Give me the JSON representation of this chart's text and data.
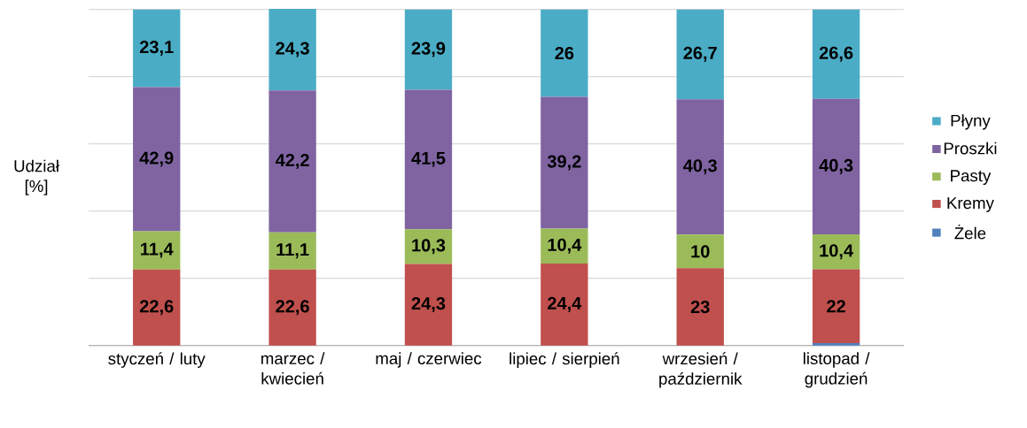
{
  "chart_data": {
    "type": "bar",
    "stacked": true,
    "ylabel": "Udział [%]",
    "categories": [
      "styczeń / luty",
      "marzec / kwiecień",
      "maj / czerwiec",
      "lipiec / sierpień",
      "wrzesień / październik",
      "listopad / grudzień"
    ],
    "series": [
      {
        "name": "Żele",
        "color": "#4f81bd",
        "values": [
          0,
          0,
          0,
          0,
          0,
          0.7
        ]
      },
      {
        "name": "Kremy",
        "color": "#c0504d",
        "values": [
          22.6,
          22.6,
          24.3,
          24.4,
          23,
          22
        ],
        "value_labels": [
          "22,6",
          "22,6",
          "24,3",
          "24,4",
          "23",
          "22"
        ]
      },
      {
        "name": "Pasty",
        "color": "#9bbb59",
        "values": [
          11.4,
          11.1,
          10.3,
          10.4,
          10,
          10.4
        ],
        "value_labels": [
          "11,4",
          "11,1",
          "10,3",
          "10,4",
          "10",
          "10,4"
        ]
      },
      {
        "name": "Proszki",
        "color": "#8064a2",
        "values": [
          42.9,
          42.2,
          41.5,
          39.2,
          40.3,
          40.3
        ],
        "value_labels": [
          "42,9",
          "42,2",
          "41,5",
          "39,2",
          "40,3",
          "40,3"
        ]
      },
      {
        "name": "Płyny",
        "color": "#4bacc6",
        "values": [
          23.1,
          24.3,
          23.9,
          26,
          26.7,
          26.6
        ],
        "value_labels": [
          "23,1",
          "24,3",
          "23,9",
          "26",
          "26,7",
          "26,6"
        ]
      }
    ],
    "ylim": [
      0,
      100
    ],
    "yticks": [
      {
        "value": 0,
        "label": null
      },
      {
        "value": 20,
        "label": null
      },
      {
        "value": 40,
        "label": null
      },
      {
        "value": 60,
        "label": null
      },
      {
        "value": 80,
        "label": null
      },
      {
        "value": 100,
        "label": null
      }
    ],
    "grid": "y",
    "legend": "right",
    "tick_labels": "x"
  }
}
